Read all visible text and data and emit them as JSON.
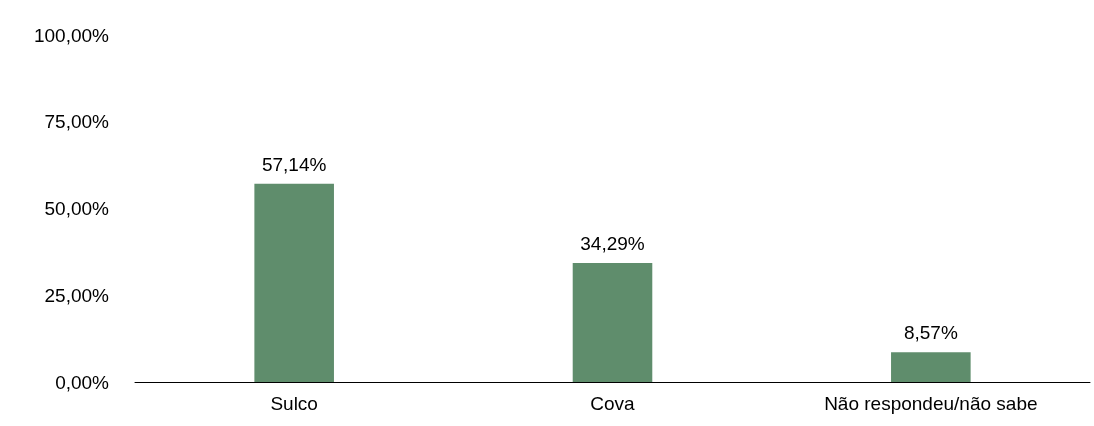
{
  "chart_data": {
    "type": "bar",
    "categories": [
      "Sulco",
      "Cova",
      "Não respondeu/não sabe"
    ],
    "values": [
      57.14,
      34.29,
      8.57
    ],
    "value_labels": [
      "57,14%",
      "34,29%",
      "8,57%"
    ],
    "color": "#5f8d6c",
    "ylim": [
      0,
      100
    ],
    "yticks": [
      {
        "value": 0,
        "label": "0,00%"
      },
      {
        "value": 25,
        "label": "25,00%"
      },
      {
        "value": 50,
        "label": "50,00%"
      },
      {
        "value": 75,
        "label": "75,00%"
      },
      {
        "value": 100,
        "label": "100,00%"
      }
    ],
    "grid": false
  }
}
